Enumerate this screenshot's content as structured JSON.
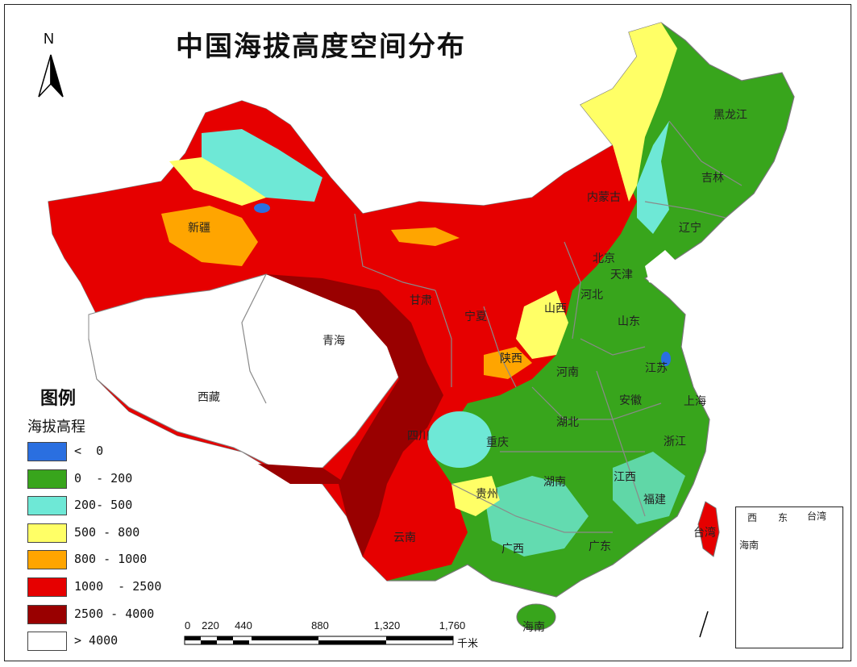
{
  "title": "中国海拔高度空间分布",
  "north_arrow": {
    "letter": "N",
    "icon": "north-arrow-icon"
  },
  "legend": {
    "heading": "图例",
    "subtitle": "海拔高程",
    "items": [
      {
        "label": "<  0",
        "color": "#2a6fe0"
      },
      {
        "label": "0  - 200",
        "color": "#38a51c"
      },
      {
        "label": "200- 500",
        "color": "#6ee8d6"
      },
      {
        "label": "500 - 800",
        "color": "#ffff66"
      },
      {
        "label": "800 - 1000",
        "color": "#ffa500"
      },
      {
        "label": "1000  - 2500",
        "color": "#e60000"
      },
      {
        "label": "2500 - 4000",
        "color": "#990000"
      },
      {
        "label": "> 4000",
        "color": "#ffffff"
      }
    ]
  },
  "provinces": {
    "heilongjiang": "黑龙江",
    "jilin": "吉林",
    "liaoning": "辽宁",
    "neimenggu": "内蒙古",
    "xinjiang": "新疆",
    "beijing": "北京",
    "tianjin": "天津",
    "hebei": "河北",
    "shanxi": "山西",
    "shandong": "山东",
    "gansu": "甘肃",
    "ningxia": "宁夏",
    "qinghai": "青海",
    "shaanxi": "陕西",
    "henan": "河南",
    "jiangsu": "江苏",
    "xizang": "西藏",
    "anhui": "安徽",
    "shanghai": "上海",
    "sichuan": "四川",
    "hubei": "湖北",
    "chongqing": "重庆",
    "zhejiang": "浙江",
    "hunan": "湖南",
    "jiangxi": "江西",
    "guizhou": "贵州",
    "fujian": "福建",
    "yunnan": "云南",
    "taiwan": "台湾",
    "guangxi": "广西",
    "guangdong": "广东",
    "hainan": "海南"
  },
  "scale_bar": {
    "ticks": [
      "0",
      "220",
      "440",
      "880",
      "1,320",
      "1,760"
    ],
    "unit": "千米"
  },
  "inset": {
    "labels": [
      "西",
      "东",
      "台湾",
      "海南"
    ]
  }
}
